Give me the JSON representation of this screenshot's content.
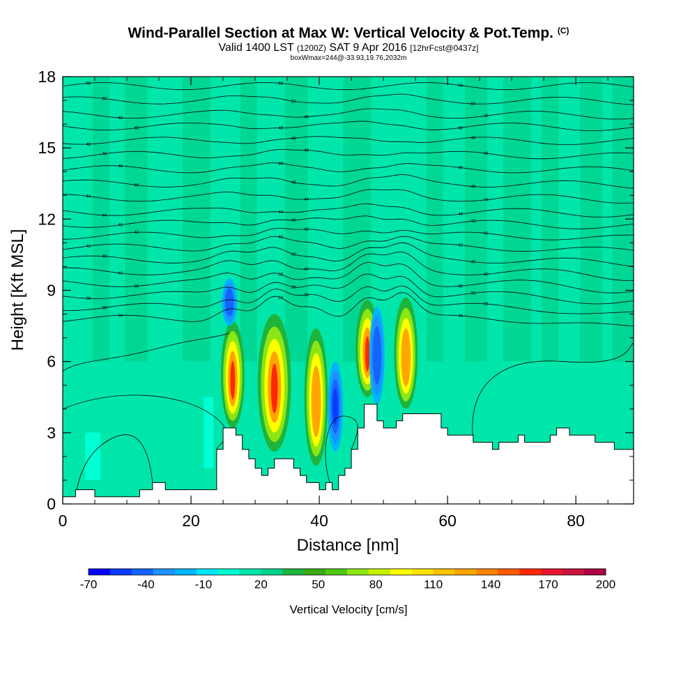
{
  "header": {
    "title": "Wind-Parallel Section at Max W: Vertical Velocity & Pot.Temp.",
    "copyright": "(C)",
    "valid_prefix": "Valid 1400 LST",
    "valid_utc": "(1200Z)",
    "valid_date": "SAT 9 Apr 2016",
    "forecast": "[12hrFcst@0437z]",
    "boxmax": "boxWmax=244@-33.93,19.76,2032m"
  },
  "chart_data": {
    "type": "heatmap",
    "xlabel": "Distance [nm]",
    "ylabel": "Height [Kft MSL]",
    "xlim": [
      0,
      89
    ],
    "ylim": [
      0,
      18
    ],
    "x_ticks": [
      0,
      20,
      40,
      60,
      80
    ],
    "y_ticks": [
      0,
      3,
      6,
      9,
      12,
      15,
      18
    ],
    "colorbar": {
      "label": "Vertical Velocity [cm/s]",
      "ticks": [
        -70,
        -40,
        -10,
        20,
        50,
        80,
        110,
        140,
        170,
        200
      ],
      "colors": [
        "#0000ff",
        "#0a3cff",
        "#1464ff",
        "#1e90ff",
        "#00b4ff",
        "#00e6ff",
        "#00ffd2",
        "#00e6aa",
        "#00d28c",
        "#1eb43c",
        "#3caa14",
        "#50c814",
        "#8ce614",
        "#c8f000",
        "#ffff00",
        "#ffe100",
        "#ffc300",
        "#ffa500",
        "#ff8200",
        "#ff5a00",
        "#ff2800",
        "#e6142d",
        "#c8143c",
        "#aa0046"
      ]
    },
    "background_class": "0 to 10 cm/s",
    "updraft_cores": [
      {
        "x": 26.5,
        "base": 3.2,
        "top": 7.7,
        "max_color": "#ff2800"
      },
      {
        "x": 33.0,
        "base": 2.2,
        "top": 8.0,
        "max_color": "#ff2800"
      },
      {
        "x": 39.5,
        "base": 1.6,
        "top": 7.4,
        "max_color": "#ffa500"
      },
      {
        "x": 47.5,
        "base": 4.5,
        "top": 8.6,
        "max_color": "#ff2800"
      },
      {
        "x": 53.5,
        "base": 4.0,
        "top": 8.7,
        "max_color": "#ffa500"
      }
    ],
    "downdraft_cores": [
      {
        "x": 42.5,
        "base": 2.2,
        "top": 6.0,
        "min_color": "#0a3cff"
      },
      {
        "x": 49.0,
        "base": 4.2,
        "top": 8.3,
        "min_color": "#1464ff"
      },
      {
        "x": 26.0,
        "base": 7.5,
        "top": 9.5,
        "min_color": "#1e90ff"
      }
    ],
    "terrain": [
      [
        0,
        0.3
      ],
      [
        2,
        0.3
      ],
      [
        2,
        0.6
      ],
      [
        5,
        0.6
      ],
      [
        5,
        0.3
      ],
      [
        12,
        0.3
      ],
      [
        12,
        0.6
      ],
      [
        14,
        0.6
      ],
      [
        14,
        0.9
      ],
      [
        16,
        0.9
      ],
      [
        16,
        0.6
      ],
      [
        24,
        0.6
      ],
      [
        24,
        2.3
      ],
      [
        25,
        2.3
      ],
      [
        25,
        3.2
      ],
      [
        27,
        3.2
      ],
      [
        27,
        2.9
      ],
      [
        28,
        2.9
      ],
      [
        28,
        2.3
      ],
      [
        29,
        2.3
      ],
      [
        29,
        1.9
      ],
      [
        30,
        1.9
      ],
      [
        30,
        1.5
      ],
      [
        31,
        1.5
      ],
      [
        31,
        1.2
      ],
      [
        32,
        1.2
      ],
      [
        32,
        1.5
      ],
      [
        33,
        1.5
      ],
      [
        33,
        1.9
      ],
      [
        36,
        1.9
      ],
      [
        36,
        1.5
      ],
      [
        37,
        1.5
      ],
      [
        37,
        1.2
      ],
      [
        38,
        1.2
      ],
      [
        38,
        0.9
      ],
      [
        40,
        0.9
      ],
      [
        40,
        0.6
      ],
      [
        41,
        0.6
      ],
      [
        41,
        0.9
      ],
      [
        42,
        0.9
      ],
      [
        42,
        0.6
      ],
      [
        43,
        0.6
      ],
      [
        43,
        1.2
      ],
      [
        44,
        1.2
      ],
      [
        44,
        1.5
      ],
      [
        45,
        1.5
      ],
      [
        45,
        2.3
      ],
      [
        46,
        2.3
      ],
      [
        46,
        3.2
      ],
      [
        47,
        3.2
      ],
      [
        47,
        4.2
      ],
      [
        49,
        4.2
      ],
      [
        49,
        3.5
      ],
      [
        50,
        3.5
      ],
      [
        50,
        3.2
      ],
      [
        52,
        3.2
      ],
      [
        52,
        3.5
      ],
      [
        53,
        3.5
      ],
      [
        53,
        3.8
      ],
      [
        59,
        3.8
      ],
      [
        59,
        3.2
      ],
      [
        60,
        3.2
      ],
      [
        60,
        2.9
      ],
      [
        64,
        2.9
      ],
      [
        64,
        2.6
      ],
      [
        67,
        2.6
      ],
      [
        67,
        2.3
      ],
      [
        68,
        2.3
      ],
      [
        68,
        2.6
      ],
      [
        71,
        2.6
      ],
      [
        71,
        2.9
      ],
      [
        72,
        2.9
      ],
      [
        72,
        2.6
      ],
      [
        76,
        2.6
      ],
      [
        76,
        2.9
      ],
      [
        77,
        2.9
      ],
      [
        77,
        3.2
      ],
      [
        79,
        3.2
      ],
      [
        79,
        2.9
      ],
      [
        83,
        2.9
      ],
      [
        83,
        2.6
      ],
      [
        86,
        2.6
      ],
      [
        86,
        2.3
      ],
      [
        89,
        2.3
      ]
    ],
    "isentropes": [
      {
        "label": "58",
        "base": 17.6,
        "amp": 0.0
      },
      {
        "label": "50",
        "base": 17.0,
        "amp": 0.1
      },
      {
        "label": "48",
        "base": 16.4,
        "amp": 0.1
      },
      {
        "label": "48",
        "base": 15.9,
        "amp": 0.1
      },
      {
        "label": "48",
        "base": 15.3,
        "amp": 0.1
      },
      {
        "label": "46",
        "base": 14.7,
        "amp": 0.15
      },
      {
        "label": "46",
        "base": 14.1,
        "amp": 0.15
      },
      {
        "label": "46",
        "base": 13.5,
        "amp": 0.2
      },
      {
        "label": "44",
        "base": 12.9,
        "amp": 0.2
      },
      {
        "label": "44",
        "base": 12.3,
        "amp": 0.2
      },
      {
        "label": "42",
        "base": 11.8,
        "amp": 0.3
      },
      {
        "label": "42",
        "base": 11.3,
        "amp": 0.3
      },
      {
        "label": "42",
        "base": 10.8,
        "amp": 0.4
      },
      {
        "label": "40",
        "base": 10.3,
        "amp": 0.5
      },
      {
        "label": "40",
        "base": 9.8,
        "amp": 0.6
      },
      {
        "label": "38",
        "base": 9.3,
        "amp": 0.7
      },
      {
        "label": "38",
        "base": 8.8,
        "amp": 0.8
      },
      {
        "label": "36",
        "base": 8.3,
        "amp": 0.9
      },
      {
        "label": "34",
        "base": 7.8,
        "amp": 1.0
      }
    ]
  }
}
